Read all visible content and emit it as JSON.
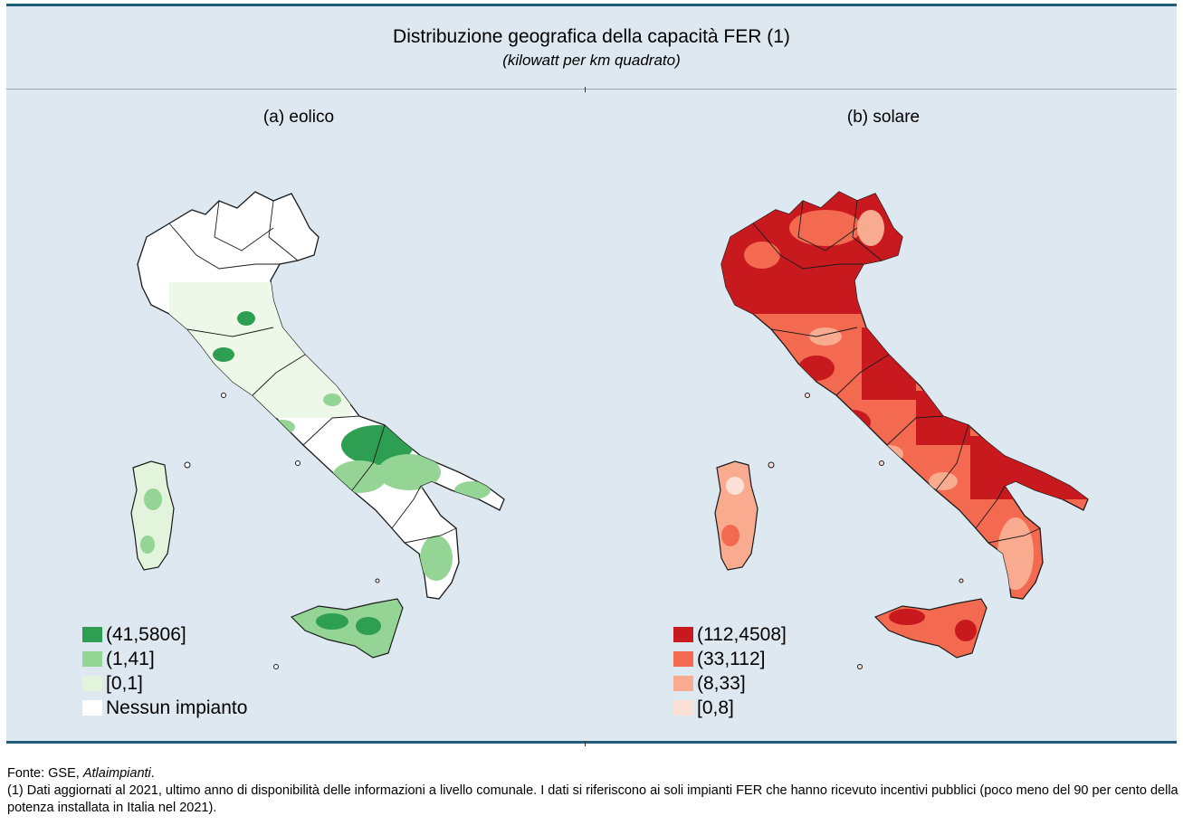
{
  "header": {
    "title": "Distribuzione geografica della capacità FER (1)",
    "subtitle": "(kilowatt per km quadrato)"
  },
  "panels": [
    {
      "title": "(a) eolico",
      "legend": [
        {
          "label": "(41,5806]",
          "color": "#2e9e52"
        },
        {
          "label": "(1,41]",
          "color": "#94d494"
        },
        {
          "label": "[0,1]",
          "color": "#e3f4dc"
        },
        {
          "label": "Nessun impianto",
          "color": "#ffffff"
        }
      ]
    },
    {
      "title": "(b) solare",
      "legend": [
        {
          "label": "(112,4508]",
          "color": "#c81a1e"
        },
        {
          "label": "(33,112]",
          "color": "#f36a50"
        },
        {
          "label": "(8,33]",
          "color": "#f9ab90"
        },
        {
          "label": "[0,8]",
          "color": "#fde1d6"
        }
      ]
    }
  ],
  "footer": {
    "source_prefix": "Fonte: GSE, ",
    "source_italic": "Atlaimpianti",
    "source_suffix": ".",
    "note": "(1) Dati aggiornati al 2021, ultimo anno di disponibilità delle informazioni a livello comunale. I dati si riferiscono ai soli impianti FER che hanno ricevuto incentivi pubblici (poco meno del 90 per cento della potenza installata in Italia nel 2021)."
  }
}
